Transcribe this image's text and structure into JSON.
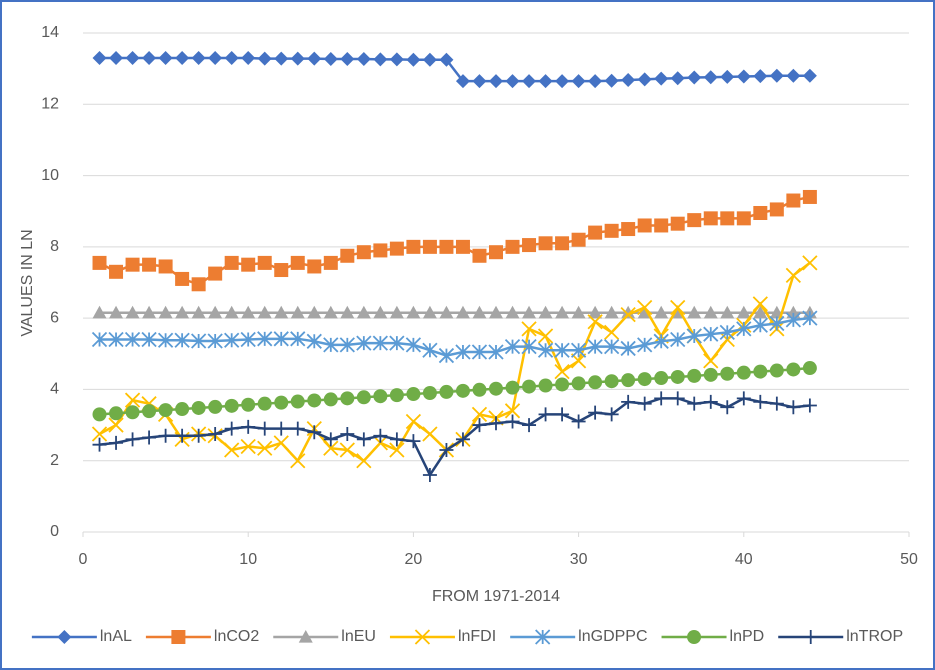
{
  "chart_data": {
    "type": "line",
    "xlabel": "FROM 1971-2014",
    "ylabel": "VALUES IN LN",
    "x": [
      1,
      2,
      3,
      4,
      5,
      6,
      7,
      8,
      9,
      10,
      11,
      12,
      13,
      14,
      15,
      16,
      17,
      18,
      19,
      20,
      21,
      22,
      23,
      24,
      25,
      26,
      27,
      28,
      29,
      30,
      31,
      32,
      33,
      34,
      35,
      36,
      37,
      38,
      39,
      40,
      41,
      42,
      43,
      44
    ],
    "xlim": [
      0,
      50
    ],
    "xticks": [
      0,
      10,
      20,
      30,
      40,
      50
    ],
    "ylim": [
      0,
      14
    ],
    "yticks": [
      0,
      2,
      4,
      6,
      8,
      10,
      12,
      14
    ],
    "grid": true,
    "legend": "bottom",
    "series": [
      {
        "name": "lnAL",
        "color": "#4472c4",
        "marker": "diamond",
        "values": [
          13.3,
          13.3,
          13.3,
          13.3,
          13.3,
          13.3,
          13.3,
          13.3,
          13.3,
          13.3,
          13.28,
          13.28,
          13.28,
          13.28,
          13.27,
          13.27,
          13.27,
          13.26,
          13.26,
          13.25,
          13.25,
          13.25,
          12.65,
          12.65,
          12.65,
          12.65,
          12.65,
          12.65,
          12.65,
          12.65,
          12.65,
          12.66,
          12.68,
          12.7,
          12.72,
          12.73,
          12.75,
          12.76,
          12.77,
          12.78,
          12.79,
          12.8,
          12.8,
          12.8
        ]
      },
      {
        "name": "lnCO2",
        "color": "#ed7d31",
        "marker": "square",
        "values": [
          7.55,
          7.3,
          7.5,
          7.5,
          7.45,
          7.1,
          6.95,
          7.25,
          7.55,
          7.5,
          7.55,
          7.35,
          7.55,
          7.45,
          7.55,
          7.75,
          7.85,
          7.9,
          7.95,
          8.0,
          8.0,
          8.0,
          8.0,
          7.75,
          7.85,
          8.0,
          8.05,
          8.1,
          8.1,
          8.2,
          8.4,
          8.45,
          8.5,
          8.6,
          8.6,
          8.65,
          8.75,
          8.8,
          8.8,
          8.8,
          8.95,
          9.05,
          9.3,
          9.4
        ]
      },
      {
        "name": "lnEU",
        "color": "#a5a5a5",
        "marker": "triangle",
        "values": [
          6.15,
          6.15,
          6.15,
          6.15,
          6.15,
          6.15,
          6.15,
          6.15,
          6.15,
          6.15,
          6.15,
          6.15,
          6.15,
          6.15,
          6.15,
          6.15,
          6.15,
          6.15,
          6.15,
          6.15,
          6.15,
          6.15,
          6.15,
          6.15,
          6.15,
          6.15,
          6.15,
          6.15,
          6.15,
          6.15,
          6.15,
          6.15,
          6.15,
          6.15,
          6.15,
          6.15,
          6.15,
          6.15,
          6.15,
          6.15,
          6.15,
          6.15,
          6.15,
          6.15
        ]
      },
      {
        "name": "lnFDI",
        "color": "#ffc000",
        "marker": "x",
        "values": [
          2.75,
          3.0,
          3.7,
          3.6,
          3.3,
          2.6,
          2.75,
          2.7,
          2.3,
          2.4,
          2.35,
          2.5,
          2.0,
          2.9,
          2.35,
          2.3,
          2.0,
          2.5,
          2.3,
          3.1,
          2.75,
          2.3,
          2.6,
          3.3,
          3.2,
          3.4,
          5.7,
          5.5,
          4.5,
          4.8,
          5.9,
          5.6,
          6.1,
          6.3,
          5.5,
          6.3,
          5.5,
          4.8,
          5.4,
          5.8,
          6.4,
          5.7,
          7.2,
          7.55
        ]
      },
      {
        "name": "lnGDPPC",
        "color": "#5b9bd5",
        "marker": "asterisk",
        "values": [
          5.4,
          5.4,
          5.4,
          5.4,
          5.38,
          5.38,
          5.36,
          5.36,
          5.38,
          5.4,
          5.42,
          5.42,
          5.42,
          5.35,
          5.25,
          5.25,
          5.3,
          5.3,
          5.3,
          5.25,
          5.1,
          4.95,
          5.05,
          5.05,
          5.05,
          5.2,
          5.2,
          5.1,
          5.1,
          5.1,
          5.2,
          5.2,
          5.15,
          5.25,
          5.35,
          5.4,
          5.5,
          5.55,
          5.6,
          5.7,
          5.8,
          5.85,
          5.95,
          6.0
        ]
      },
      {
        "name": "lnPD",
        "color": "#70ad47",
        "marker": "circle",
        "values": [
          3.3,
          3.33,
          3.36,
          3.39,
          3.42,
          3.45,
          3.48,
          3.51,
          3.54,
          3.57,
          3.6,
          3.63,
          3.66,
          3.69,
          3.72,
          3.75,
          3.78,
          3.81,
          3.84,
          3.87,
          3.9,
          3.93,
          3.96,
          3.99,
          4.02,
          4.05,
          4.08,
          4.11,
          4.14,
          4.17,
          4.2,
          4.23,
          4.26,
          4.29,
          4.32,
          4.35,
          4.38,
          4.41,
          4.44,
          4.47,
          4.5,
          4.53,
          4.56,
          4.6
        ]
      },
      {
        "name": "lnTROP",
        "color": "#264478",
        "marker": "plus",
        "values": [
          2.45,
          2.5,
          2.6,
          2.65,
          2.7,
          2.7,
          2.7,
          2.75,
          2.9,
          2.95,
          2.9,
          2.9,
          2.9,
          2.8,
          2.6,
          2.75,
          2.6,
          2.7,
          2.6,
          2.55,
          1.6,
          2.3,
          2.6,
          3.0,
          3.05,
          3.1,
          3.0,
          3.3,
          3.3,
          3.1,
          3.35,
          3.3,
          3.65,
          3.6,
          3.75,
          3.75,
          3.6,
          3.65,
          3.5,
          3.75,
          3.65,
          3.6,
          3.5,
          3.55
        ]
      }
    ]
  }
}
